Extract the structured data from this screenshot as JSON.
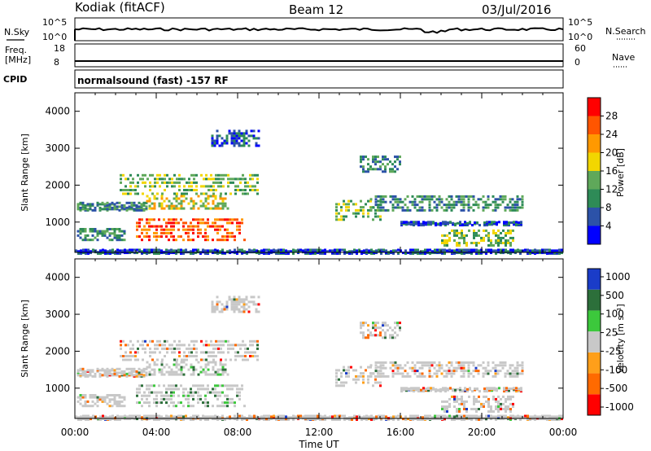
{
  "header": {
    "station": "Kodiak (fitACF)",
    "beam": "Beam 12",
    "date": "03/Jul/2016"
  },
  "panels": {
    "nsky_label": "N.Sky",
    "nsearch_label": "N.Search",
    "freq_label_top": "Freq.",
    "freq_label_unit": "[MHz]",
    "nave_label": "Nave",
    "cpid_label": "CPID",
    "cpid_text": "normalsound (fast) -157 RF",
    "nsky_ticks": [
      "10^5",
      "10^0"
    ],
    "nsearch_ticks": [
      "10^5",
      "10^0"
    ],
    "freq_ticks": [
      "18",
      "8"
    ],
    "nave_ticks": [
      "60",
      "0"
    ]
  },
  "colors": {
    "power": [
      "#0000ff",
      "#2c52a8",
      "#2e8b57",
      "#5fa85a",
      "#f2d600",
      "#ff9900",
      "#ff5500",
      "#ff0000"
    ],
    "velocity": [
      "#1a3cc8",
      "#2c6f3a",
      "#3cc83c",
      "#c8c8c8",
      "#ff9f1a",
      "#ff6a00",
      "#ff0000"
    ]
  },
  "chart_data": [
    {
      "type": "heatmap",
      "title": "Power",
      "ylabel": "Slant Range [km]",
      "xlabel": "Time UT",
      "x_ticks": [
        "00:00",
        "04:00",
        "08:00",
        "12:00",
        "16:00",
        "20:00",
        "00:00"
      ],
      "y_ticks": [
        "1000",
        "2000",
        "3000",
        "4000"
      ],
      "ylim": [
        180,
        4500
      ],
      "colorbar": {
        "label": "Power [dB]",
        "ticks": [
          "4",
          "8",
          "12",
          "16",
          "20",
          "24",
          "28"
        ]
      }
    },
    {
      "type": "heatmap",
      "title": "Velocity",
      "ylabel": "Slant Range [km]",
      "xlabel": "Time UT",
      "x_ticks": [
        "00:00",
        "04:00",
        "08:00",
        "12:00",
        "16:00",
        "20:00",
        "00:00"
      ],
      "y_ticks": [
        "1000",
        "2000",
        "3000",
        "4000"
      ],
      "ylim": [
        180,
        4500
      ],
      "colorbar": {
        "label": "Velocity [m s⁻¹]",
        "ticks": [
          "1000",
          "500",
          "100",
          "25",
          "-25",
          "-100",
          "-500",
          "-1000"
        ]
      }
    }
  ]
}
